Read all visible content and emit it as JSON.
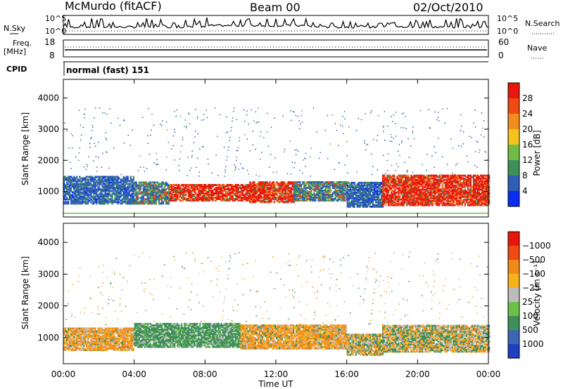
{
  "header": {
    "station": "McMurdo (fitACF)",
    "beam": "Beam 00",
    "date": "02/Oct/2010"
  },
  "top_panels": {
    "nsky_label": "N.Sky",
    "nsearch_label": "N.Search",
    "left_ticks": [
      "10^5",
      "10^0"
    ],
    "right_ticks": [
      "10^5",
      "10^0"
    ],
    "freq_label_1": "Freq.",
    "freq_label_2": "[MHz]",
    "freq_ticks": [
      "18",
      "8"
    ],
    "nave_label": "Nave",
    "nave_ticks": [
      "60",
      "0"
    ],
    "cpid_label": "CPID",
    "cpid_text": "normal (fast) 151"
  },
  "colors": {
    "frame": "#000000",
    "low_blue": "#2e5fb4",
    "green": "#3f8f5a",
    "red": "#e8170e",
    "orange": "#f17a15",
    "gray": "#b9b9b9"
  },
  "chart_data": [
    {
      "type": "heatmap",
      "panel": "power",
      "ylabel": "Slant Range [km]",
      "xlabel": "",
      "y_ticks": [
        "1000",
        "2000",
        "3000",
        "4000"
      ],
      "ylim": [
        180,
        4600
      ],
      "colorbar": {
        "label": "Power [dB]",
        "ticks": [
          "4",
          "8",
          "12",
          "16",
          "20",
          "24",
          "28"
        ],
        "colors": [
          "#0b2df2",
          "#2e5fb4",
          "#3f8f5a",
          "#6fbd45",
          "#f4c41a",
          "#f28c1c",
          "#ef4a14",
          "#e8170e"
        ]
      },
      "bands_by_hour": [
        {
          "t": [
            0,
            4
          ],
          "range_km": [
            600,
            1500
          ],
          "level": "low"
        },
        {
          "t": [
            4,
            6
          ],
          "range_km": [
            600,
            1300
          ],
          "level": "mixed"
        },
        {
          "t": [
            6,
            10.5
          ],
          "range_km": [
            700,
            1200
          ],
          "level": "high"
        },
        {
          "t": [
            10.5,
            13
          ],
          "range_km": [
            650,
            1300
          ],
          "level": "high"
        },
        {
          "t": [
            13,
            16
          ],
          "range_km": [
            700,
            1300
          ],
          "level": "mixed"
        },
        {
          "t": [
            16,
            18
          ],
          "range_km": [
            500,
            1300
          ],
          "level": "low"
        },
        {
          "t": [
            18,
            24
          ],
          "range_km": [
            550,
            1500
          ],
          "level": "high"
        }
      ]
    },
    {
      "type": "heatmap",
      "panel": "velocity",
      "ylabel": "Slant Range [km]",
      "xlabel": "Time UT",
      "x_ticks": [
        "00:00",
        "04:00",
        "08:00",
        "12:00",
        "16:00",
        "20:00",
        "00:00"
      ],
      "y_ticks": [
        "1000",
        "2000",
        "3000",
        "4000"
      ],
      "ylim": [
        180,
        4600
      ],
      "colorbar": {
        "label": "Velocity [m s⁻¹]",
        "ticks": [
          "1000",
          "500",
          "100",
          "25",
          "−25",
          "−100",
          "−500",
          "−1000"
        ],
        "colors": [
          "#1f3fc2",
          "#3e66b0",
          "#3f8f5a",
          "#6cc04a",
          "#bcbcbc",
          "#f7b21a",
          "#f28a1a",
          "#ef4a14",
          "#e8170e"
        ]
      },
      "bands_by_hour": [
        {
          "t": [
            0,
            4
          ],
          "range_km": [
            600,
            1300
          ],
          "velocity": "negative"
        },
        {
          "t": [
            4,
            10
          ],
          "range_km": [
            700,
            1450
          ],
          "velocity": "positive"
        },
        {
          "t": [
            10,
            16
          ],
          "range_km": [
            650,
            1400
          ],
          "velocity": "negative"
        },
        {
          "t": [
            16,
            18
          ],
          "range_km": [
            450,
            1100
          ],
          "velocity": "mixed"
        },
        {
          "t": [
            18,
            24
          ],
          "range_km": [
            550,
            1400
          ],
          "velocity": "mixed"
        }
      ]
    }
  ]
}
